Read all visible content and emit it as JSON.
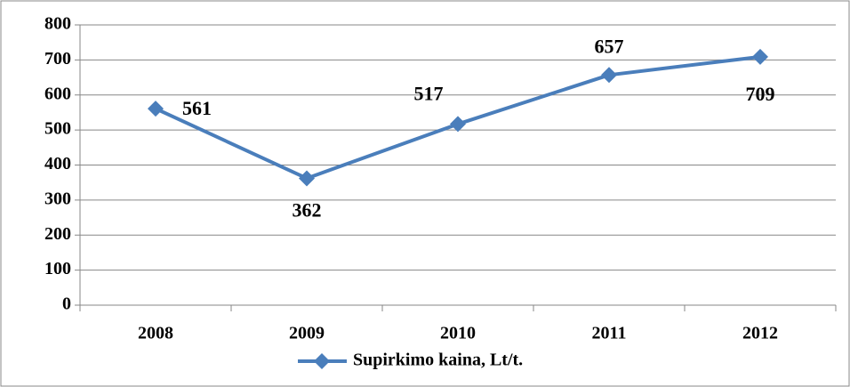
{
  "chart_data": {
    "type": "line",
    "categories": [
      "2008",
      "2009",
      "2010",
      "2011",
      "2012"
    ],
    "series": [
      {
        "name": "Supirkimo kaina, Lt/t.",
        "color": "#4a7ebb",
        "values": [
          561,
          362,
          517,
          657,
          709
        ]
      }
    ],
    "ylim": [
      0,
      800
    ],
    "yticks": [
      0,
      100,
      200,
      300,
      400,
      500,
      600,
      700,
      800
    ],
    "grid": true,
    "legend": "bottom",
    "data_labels": true
  }
}
